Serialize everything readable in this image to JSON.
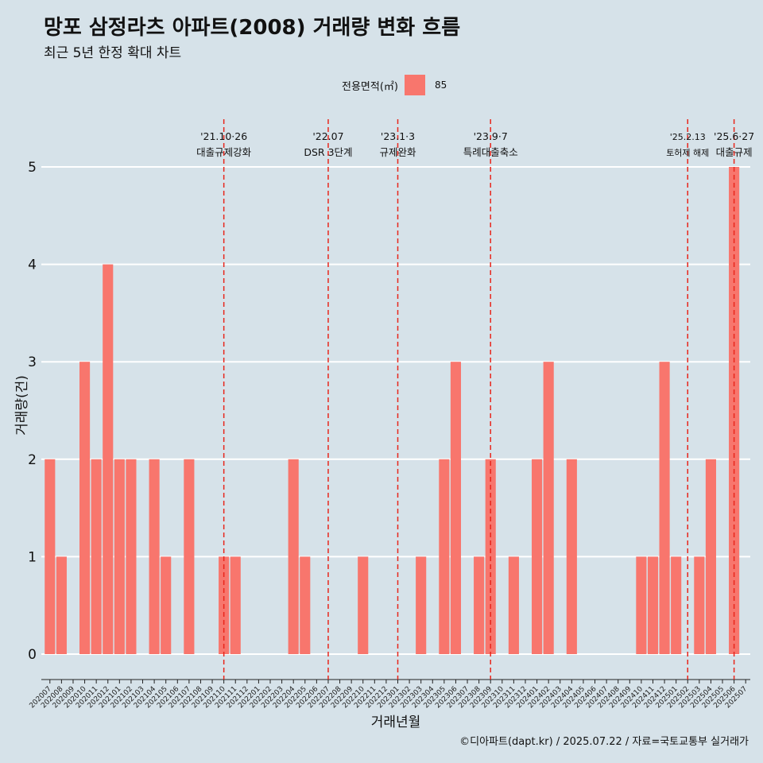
{
  "title": "망포 삼정라츠 아파트(2008) 거래량 변화 흐름",
  "subtitle": "최근 5년 한정 확대 차트",
  "caption": "©디아파트(dapt.kr) / 2025.07.22 / 자료=국토교통부 실거래가",
  "legend": {
    "title": "전용면적(㎡)",
    "label": "85",
    "color": "#f8766d"
  },
  "chart_data": {
    "type": "bar",
    "xlabel": "거래년월",
    "ylabel": "거래량(건)",
    "ylim": [
      0,
      5
    ],
    "yticks": [
      0,
      1,
      2,
      3,
      4,
      5
    ],
    "grid": true,
    "legend_position": "top",
    "categories": [
      "202007",
      "202008",
      "202009",
      "202010",
      "202011",
      "202012",
      "202101",
      "202102",
      "202103",
      "202104",
      "202105",
      "202106",
      "202107",
      "202108",
      "202109",
      "202110",
      "202111",
      "202112",
      "202201",
      "202202",
      "202203",
      "202204",
      "202205",
      "202206",
      "202207",
      "202208",
      "202209",
      "202210",
      "202211",
      "202212",
      "202301",
      "202302",
      "202303",
      "202304",
      "202305",
      "202306",
      "202307",
      "202308",
      "202309",
      "202310",
      "202311",
      "202312",
      "202401",
      "202402",
      "202403",
      "202404",
      "202405",
      "202406",
      "202407",
      "202408",
      "202409",
      "202410",
      "202411",
      "202412",
      "202501",
      "202502",
      "202503",
      "202504",
      "202505",
      "202506",
      "202507"
    ],
    "series": [
      {
        "name": "85",
        "color": "#f8766d",
        "values": [
          2,
          1,
          0,
          3,
          2,
          4,
          2,
          2,
          0,
          2,
          1,
          0,
          2,
          0,
          0,
          1,
          1,
          0,
          0,
          0,
          0,
          2,
          1,
          0,
          0,
          0,
          0,
          1,
          0,
          0,
          0,
          0,
          1,
          0,
          2,
          3,
          0,
          1,
          2,
          0,
          1,
          0,
          2,
          3,
          0,
          2,
          0,
          0,
          0,
          0,
          0,
          1,
          1,
          3,
          1,
          0,
          1,
          2,
          0,
          5,
          0
        ]
      }
    ],
    "annotations": [
      {
        "category": "202110",
        "date": "'21.10·26",
        "label": "대출규제강화"
      },
      {
        "category": "202207",
        "date": "'22.07",
        "label": "DSR 3단계"
      },
      {
        "category": "202301",
        "date": "'23.1·3",
        "label": "규제완화"
      },
      {
        "category": "202309",
        "date": "'23.9·7",
        "label": "특례대출축소"
      },
      {
        "category": "202502",
        "date": "'25.2.13",
        "label": "토허제 해제"
      },
      {
        "category": "202506",
        "date": "'25.6·27",
        "label": "대출규제"
      }
    ]
  }
}
